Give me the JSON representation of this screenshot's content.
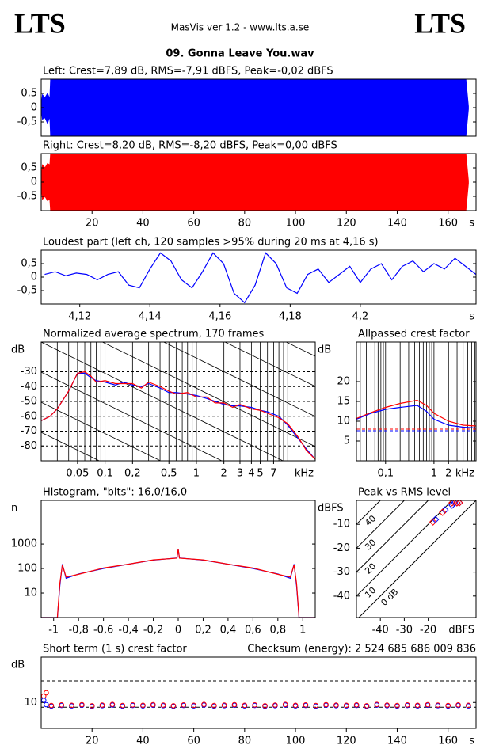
{
  "header": {
    "left_logo": "LTS",
    "center": "MasVis ver 1.2 - www.lts.a.se",
    "right_logo": "LTS",
    "file_name": "09. Gonna Leave You.wav"
  },
  "chart_data": [
    {
      "type": "area",
      "title": "Left: Crest=7,89 dB, RMS=-7,91 dBFS, Peak=-0,02 dBFS",
      "color": "#0000ff",
      "x": [
        0,
        0.5,
        1.5,
        2.5,
        3.4,
        3.7,
        167,
        168
      ],
      "upper": [
        0.05,
        0.45,
        0.35,
        0.5,
        0.3,
        1,
        1,
        0.05
      ],
      "lower": [
        -0.05,
        -0.4,
        -0.35,
        -0.55,
        -0.3,
        -1,
        -1,
        -0.05
      ],
      "xlim": [
        0,
        171
      ],
      "ylim": [
        -1,
        1
      ],
      "yticks": [
        {
          "value": 0.5,
          "label": "0,5"
        },
        0,
        {
          "value": -0.5,
          "label": "-0,5"
        }
      ]
    },
    {
      "type": "area",
      "title": "Right: Crest=8,20 dB, RMS=-8,20 dBFS, Peak=0,00 dBFS",
      "color": "#ff0000",
      "x": [
        0,
        0.5,
        1.5,
        2.5,
        3.4,
        3.7,
        167,
        168
      ],
      "upper": [
        0.1,
        0.6,
        0.5,
        0.65,
        0.6,
        1,
        1,
        0.05
      ],
      "lower": [
        -0.1,
        -0.6,
        -0.5,
        -0.65,
        -0.6,
        -1,
        -1,
        -0.05
      ],
      "xlim": [
        0,
        171
      ],
      "ylim": [
        -1,
        1
      ],
      "yticks": [
        {
          "value": 0.5,
          "label": "0,5"
        },
        0,
        {
          "value": -0.5,
          "label": "-0,5"
        }
      ],
      "xticks": [
        20,
        40,
        60,
        80,
        100,
        120,
        140,
        160
      ],
      "x_unit": "s"
    },
    {
      "type": "line",
      "title": "Loudest part (left  ch, 120 samples >95% during 20 ms at 4,16 s)",
      "x": [
        4.11,
        4.113,
        4.116,
        4.119,
        4.122,
        4.125,
        4.128,
        4.131,
        4.134,
        4.137,
        4.14,
        4.143,
        4.146,
        4.149,
        4.152,
        4.155,
        4.158,
        4.161,
        4.164,
        4.167,
        4.17,
        4.173,
        4.176,
        4.179,
        4.182,
        4.185,
        4.188,
        4.191,
        4.194,
        4.197,
        4.2,
        4.203,
        4.206,
        4.209,
        4.212,
        4.215,
        4.218,
        4.221,
        4.224,
        4.227,
        4.23,
        4.233
      ],
      "series": [
        {
          "color": "#0000ff",
          "values": [
            0.1,
            0.2,
            0.05,
            0.15,
            0.1,
            -0.1,
            0.1,
            0.2,
            -0.3,
            -0.4,
            0.3,
            0.9,
            0.6,
            -0.1,
            -0.4,
            0.2,
            0.9,
            0.5,
            -0.6,
            -0.95,
            -0.3,
            0.9,
            0.5,
            -0.4,
            -0.6,
            0.1,
            0.3,
            -0.2,
            0.1,
            0.4,
            -0.2,
            0.3,
            0.5,
            -0.1,
            0.4,
            0.6,
            0.2,
            0.5,
            0.3,
            0.7,
            0.4,
            0.1
          ]
        }
      ],
      "xlim": [
        4.109,
        4.233
      ],
      "ylim": [
        -1,
        1
      ],
      "yticks": [
        {
          "value": 0.5,
          "label": "0,5"
        },
        0,
        {
          "value": -0.5,
          "label": "-0,5"
        }
      ],
      "xticks": [
        {
          "value": 4.12,
          "label": "4,12"
        },
        {
          "value": 4.14,
          "label": "4,14"
        },
        {
          "value": 4.16,
          "label": "4,16"
        },
        {
          "value": 4.18,
          "label": "4,18"
        },
        {
          "value": 4.2,
          "label": "4,2"
        }
      ],
      "x_unit": "s"
    },
    {
      "type": "line",
      "title": "Normalized average spectrum, 170 frames",
      "y_label": "dB",
      "x_unit": "kHz",
      "xlog": true,
      "grid": "dashed",
      "xgrid": "log",
      "slope_lines": true,
      "x": [
        0.02,
        0.025,
        0.03,
        0.04,
        0.05,
        0.06,
        0.07,
        0.08,
        0.1,
        0.13,
        0.16,
        0.2,
        0.25,
        0.3,
        0.4,
        0.5,
        0.6,
        0.8,
        1,
        1.3,
        1.6,
        2,
        2.5,
        3,
        4,
        5,
        6,
        8,
        10,
        13,
        16,
        20
      ],
      "series": [
        {
          "color": "#0000ff",
          "values": [
            -63,
            -60,
            -55,
            -43,
            -31,
            -31,
            -34,
            -36,
            -37,
            -39,
            -37,
            -39,
            -40,
            -38,
            -41,
            -44,
            -44,
            -45,
            -46,
            -48,
            -50,
            -52,
            -53,
            -53,
            -54,
            -56,
            -57,
            -60,
            -66,
            -75,
            -82,
            -89
          ]
        },
        {
          "color": "#ff0000",
          "values": [
            -63,
            -60,
            -55,
            -43,
            -31,
            -30,
            -33,
            -37,
            -36,
            -38,
            -38,
            -38,
            -41,
            -37,
            -40,
            -43,
            -45,
            -44,
            -47,
            -47,
            -51,
            -51,
            -54,
            -52,
            -55,
            -56,
            -58,
            -61,
            -65,
            -74,
            -83,
            -89
          ]
        }
      ],
      "xlim": [
        0.02,
        20
      ],
      "ylim": [
        -90,
        -10
      ],
      "yticks": [
        -30,
        -40,
        -50,
        -60,
        -70,
        -80
      ],
      "xticks": [
        {
          "value": 0.05,
          "label": "0,05"
        },
        {
          "value": 0.1,
          "label": "0,1"
        },
        {
          "value": 0.2,
          "label": "0,2"
        },
        {
          "value": 0.5,
          "label": "0,5"
        },
        1,
        2,
        3,
        4,
        5,
        7
      ]
    },
    {
      "type": "line",
      "title": "Allpassed crest factor",
      "y_label": "dB",
      "x_unit": "kHz",
      "xlog": true,
      "xgrid": "log",
      "x": [
        0.025,
        0.05,
        0.1,
        0.2,
        0.45,
        0.7,
        1,
        2,
        4,
        7.4
      ],
      "series": [
        {
          "color": "#0000ff",
          "values": [
            10.5,
            12,
            13,
            13.5,
            14,
            12.5,
            10.5,
            9,
            8.5,
            8.3
          ]
        },
        {
          "color": "#ff0000",
          "values": [
            10.7,
            12.2,
            13.5,
            14.5,
            15.3,
            14,
            12,
            10,
            9,
            8.8
          ]
        }
      ],
      "hlines": [
        {
          "value": 8.0,
          "color": "#ff0000"
        },
        {
          "value": 7.6,
          "color": "#0000ff"
        }
      ],
      "xlim": [
        0.025,
        7.4
      ],
      "ylim": [
        0,
        30
      ],
      "yticks": [
        20,
        15,
        10,
        5
      ],
      "xticks": [
        {
          "value": 0.1,
          "label": "0,1"
        },
        1,
        2
      ]
    },
    {
      "type": "line",
      "title": "Histogram, \"bits\": 16,0/16,0",
      "y_label": "n",
      "ylog": true,
      "x": [
        -1.1,
        -0.97,
        -0.95,
        -0.93,
        -0.9,
        -0.8,
        -0.6,
        -0.4,
        -0.2,
        -0.01,
        0,
        0.01,
        0.2,
        0.4,
        0.6,
        0.8,
        0.9,
        0.93,
        0.95,
        0.97,
        1.1
      ],
      "series": [
        {
          "color": "#0000ff",
          "values": [
            1,
            1,
            20,
            150,
            40,
            60,
            100,
            150,
            220,
            270,
            600,
            270,
            220,
            150,
            100,
            60,
            40,
            150,
            20,
            1,
            1
          ]
        },
        {
          "color": "#ff0000",
          "values": [
            1,
            1,
            25,
            140,
            45,
            58,
            105,
            150,
            225,
            265,
            620,
            265,
            225,
            150,
            105,
            58,
            45,
            140,
            25,
            1,
            1
          ]
        }
      ],
      "xlim": [
        -1.1,
        1.1
      ],
      "ylim": [
        1,
        60000
      ],
      "yticks": [
        1000,
        100,
        10
      ],
      "xticks": [
        -1,
        {
          "value": -0.8,
          "label": "-0,8"
        },
        {
          "value": -0.6,
          "label": "-0,6"
        },
        {
          "value": -0.4,
          "label": "-0,4"
        },
        {
          "value": -0.2,
          "label": "-0,2"
        },
        0,
        {
          "value": 0.2,
          "label": "0,2"
        },
        {
          "value": 0.4,
          "label": "0,4"
        },
        {
          "value": 0.6,
          "label": "0,6"
        },
        {
          "value": 0.8,
          "label": "0,8"
        },
        1
      ]
    },
    {
      "type": "scatter",
      "title": "Peak vs RMS level",
      "y_label": "dBFS",
      "x_unit": "dBFS",
      "marker": "diamond",
      "series": [
        {
          "color": "#0000ff",
          "x": [
            -17,
            -13,
            -10,
            -9,
            -8,
            -7
          ],
          "values": [
            -8,
            -4,
            -2,
            -1,
            -1,
            -1
          ]
        },
        {
          "color": "#ff0000",
          "x": [
            -18,
            -14,
            -10,
            -8,
            -7
          ],
          "values": [
            -9,
            -5,
            -1,
            -1,
            -1
          ]
        }
      ],
      "diagonals": [
        {
          "value": 40,
          "label": "40"
        },
        {
          "value": 30,
          "label": "30"
        },
        {
          "value": 20,
          "label": "20"
        },
        {
          "value": 10,
          "label": "10"
        },
        {
          "value": 0,
          "label": "0 dB"
        }
      ],
      "xlim": [
        -50,
        0
      ],
      "ylim": [
        -49,
        0
      ],
      "yticks": [
        -10,
        -20,
        -30,
        -40
      ],
      "xticks": [
        -40,
        -30,
        -20
      ]
    },
    {
      "type": "scatter",
      "title": "Short term (1 s) crest factor",
      "annotation": "Checksum (energy):  2 524 685 686 009 836",
      "y_label": "dB",
      "x_unit": "s",
      "marker": "circle",
      "series": [
        {
          "color": "#0000ff",
          "x": [
            1,
            2,
            4,
            8,
            12,
            16,
            20,
            24,
            28,
            32,
            36,
            40,
            44,
            48,
            52,
            56,
            60,
            64,
            68,
            72,
            76,
            80,
            84,
            88,
            92,
            96,
            100,
            104,
            108,
            112,
            116,
            120,
            124,
            128,
            132,
            136,
            140,
            144,
            148,
            152,
            156,
            160,
            164,
            168
          ],
          "values": [
            11,
            9,
            8.3,
            8.6,
            8.4,
            8.7,
            8.2,
            8.5,
            8.8,
            8.3,
            8.6,
            8.4,
            8.7,
            8.5,
            8.2,
            8.6,
            8.4,
            8.8,
            8.3,
            8.5,
            8.7,
            8.4,
            8.6,
            8.2,
            8.5,
            8.8,
            8.4,
            8.6,
            8.3,
            8.7,
            8.5,
            8.4,
            8.6,
            8.2,
            8.8,
            8.5,
            8.3,
            8.6,
            8.4,
            8.7,
            8.5,
            8.3,
            8.6,
            8.4
          ]
        },
        {
          "color": "#ff0000",
          "x": [
            1,
            2,
            4,
            8,
            12,
            16,
            20,
            24,
            28,
            32,
            36,
            40,
            44,
            48,
            52,
            56,
            60,
            64,
            68,
            72,
            76,
            80,
            84,
            88,
            92,
            96,
            100,
            104,
            108,
            112,
            116,
            120,
            124,
            128,
            132,
            136,
            140,
            144,
            148,
            152,
            156,
            160,
            164,
            168
          ],
          "values": [
            13,
            14.5,
            8.6,
            8.9,
            8.7,
            9,
            8.5,
            8.8,
            9.1,
            8.6,
            8.9,
            8.7,
            9,
            8.8,
            8.5,
            8.9,
            8.7,
            9.1,
            8.6,
            8.8,
            9,
            8.7,
            8.9,
            8.5,
            8.8,
            9.1,
            8.7,
            8.9,
            8.6,
            9,
            8.8,
            8.7,
            8.9,
            8.5,
            9.1,
            8.8,
            8.6,
            8.9,
            8.7,
            9,
            8.8,
            8.6,
            8.9,
            8.7
          ]
        }
      ],
      "hlines": [
        {
          "value": 20,
          "color": "#000000"
        },
        {
          "value": 7.8,
          "color": "#000000"
        }
      ],
      "xlim": [
        0,
        171
      ],
      "ylim": [
        -2,
        31
      ],
      "yticks": [
        10
      ],
      "xticks": [
        20,
        40,
        60,
        80,
        100,
        120,
        140,
        160
      ]
    }
  ]
}
